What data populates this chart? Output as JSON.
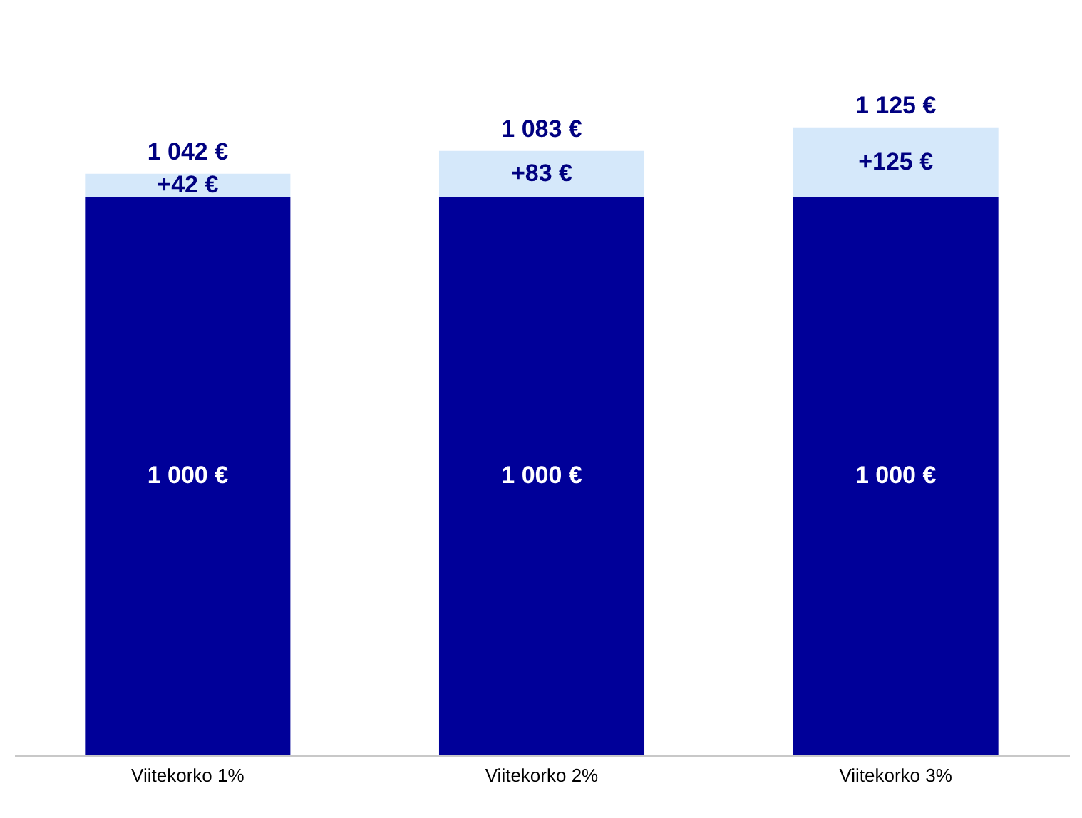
{
  "chart_data": {
    "type": "bar",
    "stacked": true,
    "categories": [
      "Viitekorko 1%",
      "Viitekorko 2%",
      "Viitekorko 3%"
    ],
    "series": [
      {
        "color": "#000099",
        "values": [
          1000,
          1000,
          1000
        ],
        "value_labels": [
          "1 000 €",
          "1 000 €",
          "1 000 €"
        ]
      },
      {
        "color": "#d5e8fa",
        "values": [
          42,
          83,
          125
        ],
        "value_labels": [
          "+42 €",
          "+83 €",
          "+125 €"
        ]
      }
    ],
    "totals": [
      "1 042 €",
      "1 083 €",
      "1 125 €"
    ]
  }
}
